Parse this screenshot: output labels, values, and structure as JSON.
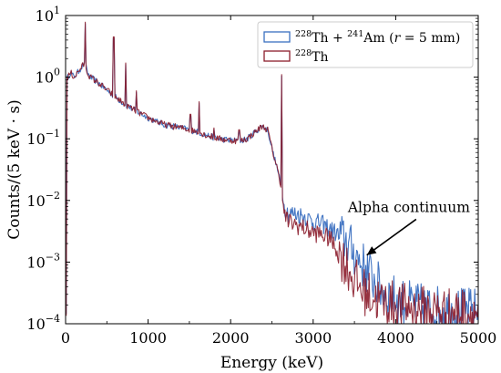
{
  "chart_data": {
    "type": "line",
    "title": "",
    "xlabel": "Energy (keV)",
    "ylabel": "Counts/(5 keV · s)",
    "xlim": [
      0,
      5000
    ],
    "ylim": [
      0.0001,
      10
    ],
    "yscale": "log",
    "grid": false,
    "legend_position": "top-right",
    "x_ticks": [
      0,
      1000,
      2000,
      3000,
      4000,
      5000
    ],
    "x_tick_labels": [
      "0",
      "1000",
      "2000",
      "3000",
      "4000",
      "5000"
    ],
    "y_ticks": [
      0.0001,
      0.001,
      0.01,
      0.1,
      1,
      10
    ],
    "y_tick_labels": [
      {
        "base": "10",
        "exp": "−4"
      },
      {
        "base": "10",
        "exp": "−3"
      },
      {
        "base": "10",
        "exp": "−2"
      },
      {
        "base": "10",
        "exp": "−1"
      },
      {
        "base": "10",
        "exp": "0"
      },
      {
        "base": "10",
        "exp": "1"
      }
    ],
    "series": [
      {
        "name": "228Th + 241Am (r = 5 mm)",
        "legend": {
          "sup1": "228",
          "t1": "Th + ",
          "sup2": "241",
          "t2": "Am (",
          "ivar": "r",
          "t3": " = 5 mm)"
        },
        "color": "#3a6fc0",
        "points": [
          [
            10,
            0.9
          ],
          [
            60,
            1.2
          ],
          [
            100,
            1.0
          ],
          [
            150,
            1.2
          ],
          [
            200,
            1.5
          ],
          [
            238,
            1.7
          ],
          [
            260,
            1.2
          ],
          [
            300,
            1.0
          ],
          [
            350,
            0.9
          ],
          [
            400,
            0.8
          ],
          [
            500,
            0.62
          ],
          [
            600,
            0.48
          ],
          [
            700,
            0.38
          ],
          [
            800,
            0.31
          ],
          [
            900,
            0.26
          ],
          [
            1000,
            0.22
          ],
          [
            1100,
            0.19
          ],
          [
            1200,
            0.17
          ],
          [
            1300,
            0.16
          ],
          [
            1400,
            0.15
          ],
          [
            1500,
            0.14
          ],
          [
            1600,
            0.13
          ],
          [
            1700,
            0.115
          ],
          [
            1800,
            0.105
          ],
          [
            1900,
            0.098
          ],
          [
            2000,
            0.095
          ],
          [
            2100,
            0.092
          ],
          [
            2200,
            0.1
          ],
          [
            2300,
            0.13
          ],
          [
            2380,
            0.16
          ],
          [
            2450,
            0.14
          ],
          [
            2500,
            0.07
          ],
          [
            2560,
            0.035
          ],
          [
            2600,
            0.02
          ],
          [
            2650,
            0.008
          ],
          [
            2700,
            0.0062
          ],
          [
            2800,
            0.006
          ],
          [
            2900,
            0.0055
          ],
          [
            3000,
            0.0045
          ],
          [
            3100,
            0.0042
          ],
          [
            3200,
            0.0035
          ],
          [
            3300,
            0.0028
          ],
          [
            3400,
            0.0022
          ],
          [
            3500,
            0.0014
          ],
          [
            3600,
            0.0009
          ],
          [
            3700,
            0.0006
          ],
          [
            3800,
            0.0004
          ],
          [
            3900,
            0.0003
          ],
          [
            4000,
            0.00025
          ],
          [
            4200,
            0.0002
          ],
          [
            4400,
            0.00018
          ],
          [
            4600,
            0.00017
          ],
          [
            4800,
            0.00016
          ],
          [
            5000,
            0.00016
          ]
        ]
      },
      {
        "name": "228Th",
        "legend": {
          "sup1": "228",
          "t1": "Th"
        },
        "color": "#8b1c2b",
        "points": [
          [
            10,
            0.9
          ],
          [
            60,
            1.2
          ],
          [
            100,
            1.0
          ],
          [
            150,
            1.2
          ],
          [
            200,
            1.5
          ],
          [
            238,
            1.7
          ],
          [
            260,
            1.2
          ],
          [
            300,
            1.0
          ],
          [
            350,
            0.9
          ],
          [
            400,
            0.8
          ],
          [
            500,
            0.62
          ],
          [
            600,
            0.48
          ],
          [
            700,
            0.38
          ],
          [
            800,
            0.31
          ],
          [
            900,
            0.26
          ],
          [
            1000,
            0.22
          ],
          [
            1100,
            0.19
          ],
          [
            1200,
            0.17
          ],
          [
            1300,
            0.16
          ],
          [
            1400,
            0.15
          ],
          [
            1500,
            0.14
          ],
          [
            1600,
            0.13
          ],
          [
            1700,
            0.115
          ],
          [
            1800,
            0.105
          ],
          [
            1900,
            0.098
          ],
          [
            2000,
            0.095
          ],
          [
            2100,
            0.092
          ],
          [
            2200,
            0.1
          ],
          [
            2300,
            0.13
          ],
          [
            2380,
            0.16
          ],
          [
            2450,
            0.14
          ],
          [
            2500,
            0.07
          ],
          [
            2560,
            0.035
          ],
          [
            2600,
            0.02
          ],
          [
            2650,
            0.006
          ],
          [
            2700,
            0.0045
          ],
          [
            2800,
            0.004
          ],
          [
            2900,
            0.0035
          ],
          [
            3000,
            0.003
          ],
          [
            3100,
            0.0028
          ],
          [
            3200,
            0.0024
          ],
          [
            3300,
            0.0015
          ],
          [
            3400,
            0.0009
          ],
          [
            3500,
            0.0005
          ],
          [
            3600,
            0.00035
          ],
          [
            3700,
            0.00028
          ],
          [
            3800,
            0.00024
          ],
          [
            3900,
            0.00022
          ],
          [
            4000,
            0.0002
          ],
          [
            4200,
            0.00018
          ],
          [
            4400,
            0.00017
          ],
          [
            4600,
            0.00016
          ],
          [
            4800,
            0.00016
          ],
          [
            5000,
            0.00015
          ]
        ]
      }
    ],
    "peaks": [
      {
        "x": 238,
        "y": 7.8
      },
      {
        "x": 583,
        "y": 4.5
      },
      {
        "x": 727,
        "y": 1.7
      },
      {
        "x": 860,
        "y": 0.6
      },
      {
        "x": 1078,
        "y": 0.2
      },
      {
        "x": 1513,
        "y": 0.25
      },
      {
        "x": 1620,
        "y": 0.4
      },
      {
        "x": 1800,
        "y": 0.15
      },
      {
        "x": 2103,
        "y": 0.14
      },
      {
        "x": 2614,
        "y": 1.1
      },
      {
        "x": 3198,
        "y": 0.0032
      }
    ],
    "annotations": [
      {
        "text": "Alpha continuum",
        "text_x": 3420,
        "text_y": 0.0065,
        "arrow_to": [
          3650,
          0.0013
        ]
      }
    ]
  }
}
